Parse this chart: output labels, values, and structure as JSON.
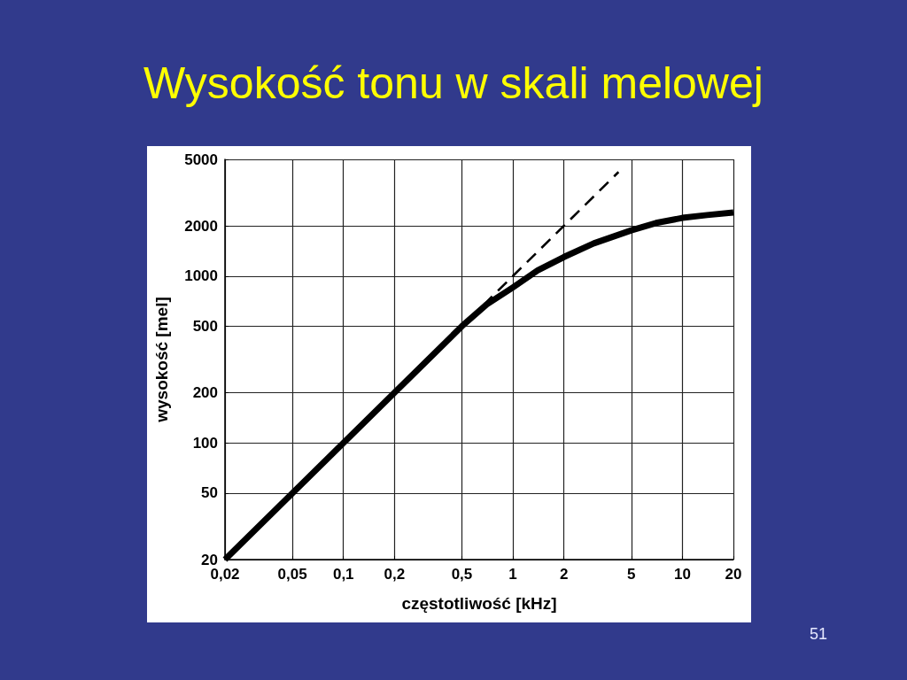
{
  "chart_data": {
    "type": "line",
    "title": "Wysokość tonu w skali melowej",
    "xlabel": "częstotliwość [kHz]",
    "ylabel": "wysokość [mel]",
    "annotations": [
      "51"
    ],
    "xlim": [
      0.02,
      20
    ],
    "ylim": [
      20,
      5000
    ],
    "xticks": [
      {
        "value": 0.02,
        "label": "0,02"
      },
      {
        "value": 0.05,
        "label": "0,05"
      },
      {
        "value": 0.1,
        "label": "0,1"
      },
      {
        "value": 0.2,
        "label": "0,2"
      },
      {
        "value": 0.5,
        "label": "0,5"
      },
      1,
      2,
      5,
      10,
      20
    ],
    "yticks": [
      20,
      50,
      100,
      200,
      500,
      1000,
      2000,
      5000
    ],
    "log": "xy",
    "grid": true,
    "marker": "none",
    "series": [
      {
        "color": "#000000",
        "line_style": "solid",
        "x": [
          0.02,
          0.05,
          0.1,
          0.2,
          0.35,
          0.5,
          0.7,
          1,
          1.4,
          2,
          3,
          5,
          7,
          10,
          14,
          20
        ],
        "values": [
          20,
          50,
          100,
          200,
          350,
          500,
          675,
          855,
          1080,
          1300,
          1570,
          1880,
          2080,
          2230,
          2320,
          2400
        ]
      },
      {
        "color": "#000000",
        "line_style": "dashed",
        "x": [
          0.55,
          4.2
        ],
        "values": [
          550,
          4200
        ]
      }
    ]
  }
}
